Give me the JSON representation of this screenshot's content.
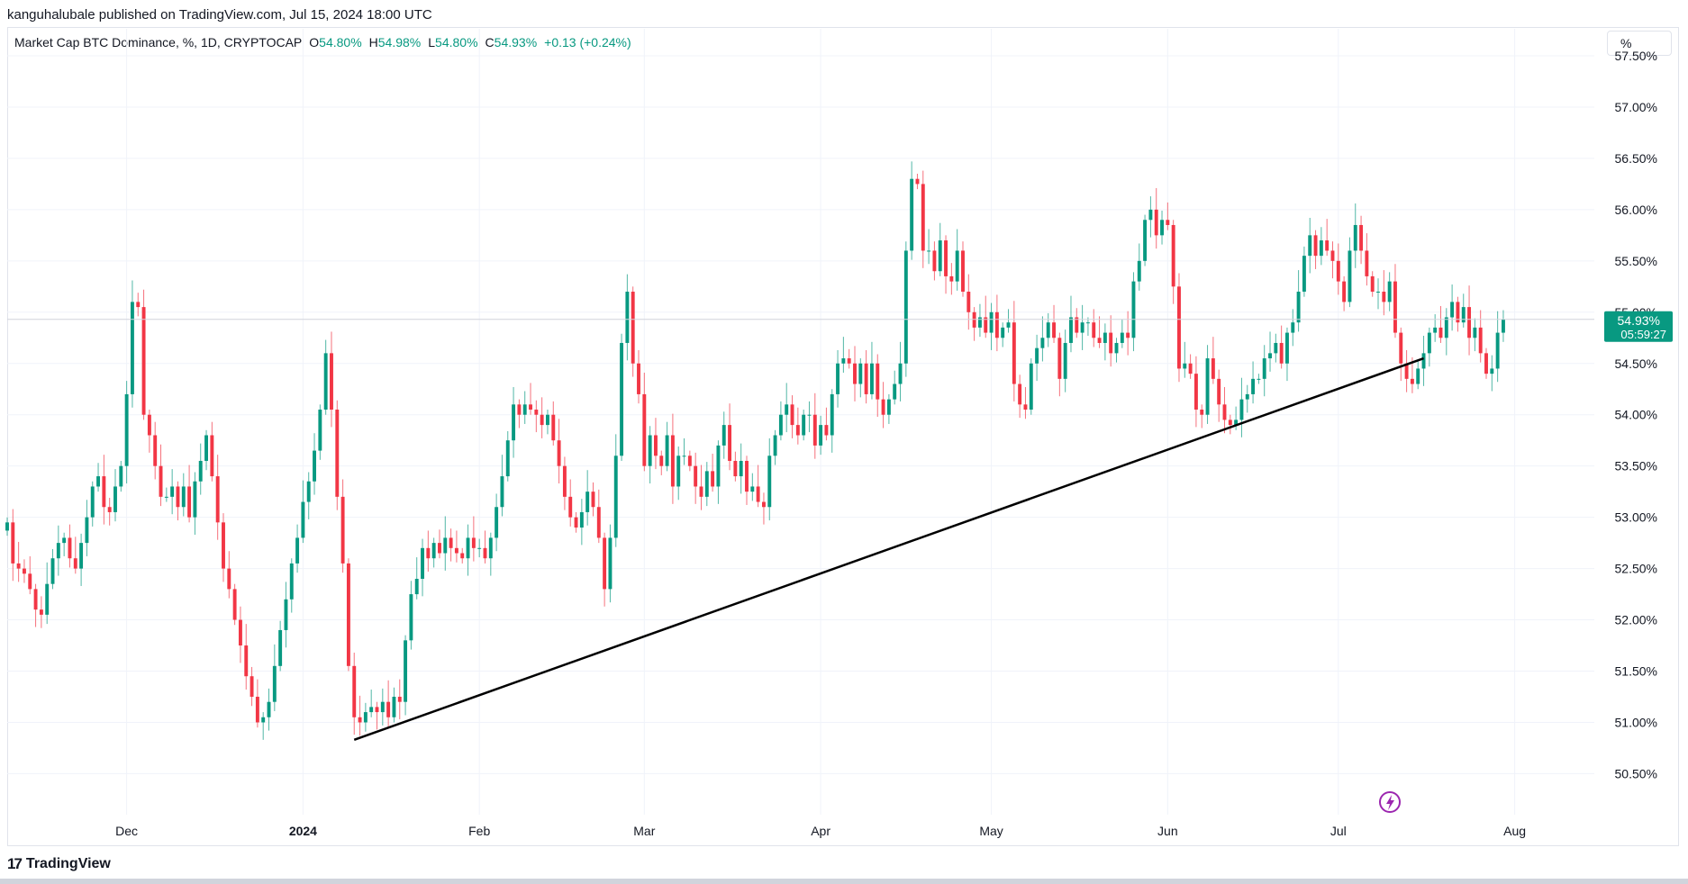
{
  "publisher": "kanguhalubale published on TradingView.com, Jul 15, 2024 18:00 UTC",
  "legend": {
    "symbol": "Market Cap BTC Dominance, %, 1D, CRYPTOCAP",
    "o_label": "O",
    "o_value": "54.80%",
    "h_label": "H",
    "h_value": "54.98%",
    "l_label": "L",
    "l_value": "54.80%",
    "c_label": "C",
    "c_value": "54.93%",
    "change": "+0.13 (+0.24%)"
  },
  "unit_button": "%",
  "price_tag": {
    "value": "54.93%",
    "countdown": "05:59:27"
  },
  "brand": "TradingView",
  "colors": {
    "up": "#089981",
    "down": "#f23645",
    "trendline": "#000000",
    "grid": "#f0f3fa"
  },
  "chart_data": {
    "type": "candlestick",
    "ylim": [
      50.1,
      57.5
    ],
    "yticks": [
      "50.50%",
      "51.00%",
      "51.50%",
      "52.00%",
      "52.50%",
      "53.00%",
      "53.50%",
      "54.00%",
      "54.50%",
      "55.00%",
      "55.50%",
      "56.00%",
      "56.50%",
      "57.00%",
      "57.50%"
    ],
    "ytick_values": [
      50.5,
      51.0,
      51.5,
      52.0,
      52.5,
      53.0,
      53.5,
      54.0,
      54.5,
      55.0,
      55.5,
      56.0,
      56.5,
      57.0,
      57.5
    ],
    "x_range": [
      "2023-11-10",
      "2024-08-15"
    ],
    "xticks": [
      {
        "label": "Dec",
        "date": "2023-12-01",
        "bold": false
      },
      {
        "label": "2024",
        "date": "2024-01-01",
        "bold": true
      },
      {
        "label": "Feb",
        "date": "2024-02-01",
        "bold": false
      },
      {
        "label": "Mar",
        "date": "2024-03-01",
        "bold": false
      },
      {
        "label": "Apr",
        "date": "2024-04-01",
        "bold": false
      },
      {
        "label": "May",
        "date": "2024-05-01",
        "bold": false
      },
      {
        "label": "Jun",
        "date": "2024-06-01",
        "bold": false
      },
      {
        "label": "Jul",
        "date": "2024-07-01",
        "bold": false
      },
      {
        "label": "Aug",
        "date": "2024-08-01",
        "bold": false
      }
    ],
    "start_date": "2023-11-10",
    "closes": [
      52.95,
      52.55,
      52.5,
      52.45,
      52.3,
      52.1,
      52.05,
      52.35,
      52.6,
      52.75,
      52.8,
      52.6,
      52.5,
      52.75,
      53.0,
      53.3,
      53.4,
      53.1,
      53.05,
      53.3,
      53.5,
      54.2,
      55.1,
      55.05,
      54.0,
      53.8,
      53.5,
      53.2,
      53.2,
      53.3,
      53.1,
      53.3,
      53.0,
      53.35,
      53.55,
      53.8,
      53.4,
      52.95,
      52.5,
      52.3,
      52.0,
      51.75,
      51.45,
      51.25,
      51.0,
      51.05,
      51.2,
      51.55,
      51.9,
      52.2,
      52.55,
      52.8,
      53.15,
      53.35,
      53.65,
      54.05,
      54.6,
      54.05,
      53.2,
      52.55,
      51.55,
      51.05,
      51.0,
      51.1,
      51.15,
      51.1,
      51.2,
      51.05,
      51.25,
      51.2,
      51.8,
      52.25,
      52.4,
      52.7,
      52.6,
      52.75,
      52.65,
      52.8,
      52.7,
      52.65,
      52.6,
      52.8,
      52.7,
      52.7,
      52.6,
      52.8,
      53.1,
      53.4,
      53.75,
      54.1,
      54.0,
      54.1,
      54.05,
      54.0,
      53.9,
      54.0,
      53.75,
      53.5,
      53.2,
      53.0,
      52.9,
      53.05,
      53.25,
      53.1,
      52.8,
      52.3,
      52.8,
      53.6,
      54.7,
      55.2,
      54.5,
      54.2,
      53.5,
      53.8,
      53.6,
      53.5,
      53.8,
      53.3,
      53.6,
      53.6,
      53.5,
      53.3,
      53.2,
      53.45,
      53.3,
      53.7,
      53.9,
      53.55,
      53.4,
      53.55,
      53.25,
      53.3,
      53.15,
      53.1,
      53.6,
      53.8,
      54.0,
      54.1,
      53.9,
      53.8,
      54.0,
      54.0,
      53.7,
      53.9,
      53.8,
      54.2,
      54.5,
      54.55,
      54.5,
      54.3,
      54.5,
      54.2,
      54.5,
      54.15,
      54.0,
      54.15,
      54.3,
      54.5,
      55.6,
      56.3,
      56.25,
      55.6,
      55.6,
      55.4,
      55.7,
      55.35,
      55.3,
      55.6,
      55.2,
      55.0,
      54.85,
      54.95,
      54.8,
      55.0,
      54.75,
      54.85,
      54.9,
      54.3,
      54.1,
      54.05,
      54.5,
      54.65,
      54.75,
      54.9,
      54.75,
      54.35,
      54.7,
      54.95,
      54.8,
      54.9,
      54.9,
      54.75,
      54.7,
      54.8,
      54.6,
      54.7,
      54.8,
      54.75,
      55.3,
      55.5,
      55.9,
      56.0,
      55.75,
      55.9,
      55.85,
      55.25,
      54.45,
      54.5,
      54.4,
      54.05,
      54.0,
      54.55,
      54.35,
      54.1,
      53.95,
      53.9,
      53.95,
      54.15,
      54.2,
      54.35,
      54.35,
      54.55,
      54.6,
      54.7,
      54.5,
      54.8,
      54.9,
      55.2,
      55.55,
      55.75,
      55.55,
      55.7,
      55.6,
      55.5,
      55.3,
      55.1,
      55.6,
      55.85,
      55.6,
      55.35,
      55.2,
      55.2,
      55.1,
      55.3,
      54.8,
      54.5,
      54.35,
      54.3,
      54.45,
      54.6,
      54.8,
      54.85,
      54.75,
      54.95,
      55.1,
      54.9,
      55.05,
      54.75,
      54.85,
      54.6,
      54.4,
      54.45,
      54.8,
      54.93
    ],
    "trendline": {
      "start": {
        "date": "2024-01-10",
        "value": 50.83
      },
      "end": {
        "date": "2024-07-16",
        "value": 54.55
      }
    }
  }
}
